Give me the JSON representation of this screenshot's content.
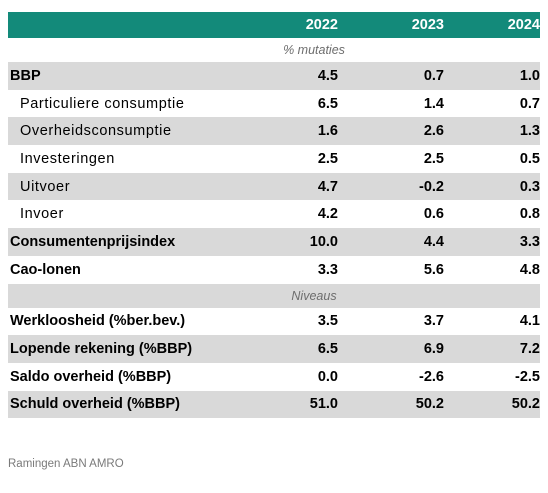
{
  "header": {
    "col1": "2022",
    "col2": "2023",
    "col3": "2024"
  },
  "section1": "% mutaties",
  "rows1": [
    {
      "label": "BBP",
      "v1": "4.5",
      "v2": "0.7",
      "v3": "1.0",
      "indent": false,
      "shade": true
    },
    {
      "label": "Particuliere consumptie",
      "v1": "6.5",
      "v2": "1.4",
      "v3": "0.7",
      "indent": true,
      "shade": false
    },
    {
      "label": "Overheidsconsumptie",
      "v1": "1.6",
      "v2": "2.6",
      "v3": "1.3",
      "indent": true,
      "shade": true
    },
    {
      "label": "Investeringen",
      "v1": "2.5",
      "v2": "2.5",
      "v3": "0.5",
      "indent": true,
      "shade": false
    },
    {
      "label": "Uitvoer",
      "v1": "4.7",
      "v2": "-0.2",
      "v3": "0.3",
      "indent": true,
      "shade": true
    },
    {
      "label": "Invoer",
      "v1": "4.2",
      "v2": "0.6",
      "v3": "0.8",
      "indent": true,
      "shade": false
    },
    {
      "label": "Consumentenprijsindex",
      "v1": "10.0",
      "v2": "4.4",
      "v3": "3.3",
      "indent": false,
      "shade": true
    },
    {
      "label": "Cao-lonen",
      "v1": "3.3",
      "v2": "5.6",
      "v3": "4.8",
      "indent": false,
      "shade": false
    }
  ],
  "section2": "Niveaus",
  "rows2": [
    {
      "label": "Werkloosheid (%ber.bev.)",
      "v1": "3.5",
      "v2": "3.7",
      "v3": "4.1",
      "shade": false
    },
    {
      "label": "Lopende rekening (%BBP)",
      "v1": "6.5",
      "v2": "6.9",
      "v3": "7.2",
      "shade": true
    },
    {
      "label": "Saldo overheid (%BBP)",
      "v1": "0.0",
      "v2": "-2.6",
      "v3": "-2.5",
      "shade": false
    },
    {
      "label": "Schuld overheid (%BBP)",
      "v1": "51.0",
      "v2": "50.2",
      "v3": "50.2",
      "shade": true
    }
  ],
  "footer": "Ramingen ABN AMRO",
  "colors": {
    "header_bg": "#138a7a",
    "shade": "#d9d9d9",
    "section_text": "#6d6d6d"
  }
}
